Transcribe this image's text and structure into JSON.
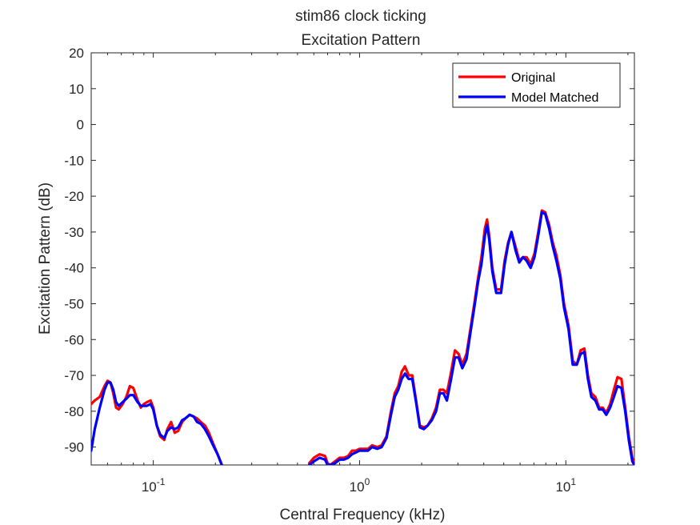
{
  "chart_data": {
    "type": "line",
    "title": "stim86 clock ticking",
    "subtitle": "Excitation Pattern",
    "xlabel": "Central Frequency (kHz)",
    "ylabel": "Excitation Pattern (dB)",
    "xscale": "log",
    "xlim": [
      0.05,
      21.5
    ],
    "ylim": [
      -95,
      20
    ],
    "grid": false,
    "legend_position": "top-right",
    "yticks": [
      20,
      10,
      0,
      -10,
      -20,
      -30,
      -40,
      -50,
      -60,
      -70,
      -80,
      -90
    ],
    "xticks": [
      {
        "value": 0.1,
        "label_base": "10",
        "label_exp": "-1"
      },
      {
        "value": 1,
        "label_base": "10",
        "label_exp": "0"
      },
      {
        "value": 10,
        "label_base": "10",
        "label_exp": "1"
      }
    ],
    "series": [
      {
        "name": "Original",
        "color": "#ff0000",
        "segments": [
          [
            [
              0.05,
              -78
            ],
            [
              0.052,
              -77
            ],
            [
              0.055,
              -76
            ],
            [
              0.058,
              -73
            ],
            [
              0.06,
              -71.5
            ],
            [
              0.062,
              -72
            ],
            [
              0.064,
              -75
            ],
            [
              0.066,
              -79
            ],
            [
              0.068,
              -79.5
            ],
            [
              0.071,
              -78
            ],
            [
              0.074,
              -76
            ],
            [
              0.077,
              -73
            ],
            [
              0.08,
              -73.5
            ],
            [
              0.084,
              -77
            ],
            [
              0.087,
              -79
            ],
            [
              0.09,
              -78
            ],
            [
              0.093,
              -77.5
            ],
            [
              0.097,
              -77
            ],
            [
              0.1,
              -79
            ],
            [
              0.104,
              -84
            ],
            [
              0.108,
              -87
            ],
            [
              0.113,
              -88
            ],
            [
              0.117,
              -85
            ],
            [
              0.122,
              -83
            ],
            [
              0.127,
              -86
            ],
            [
              0.132,
              -85.5
            ],
            [
              0.138,
              -83
            ],
            [
              0.143,
              -82
            ],
            [
              0.15,
              -81
            ],
            [
              0.157,
              -81.5
            ],
            [
              0.163,
              -82
            ],
            [
              0.17,
              -83
            ],
            [
              0.178,
              -84
            ],
            [
              0.186,
              -86
            ],
            [
              0.195,
              -89
            ],
            [
              0.205,
              -92
            ],
            [
              0.215,
              -95
            ]
          ],
          [
            [
              0.57,
              -94.5
            ],
            [
              0.6,
              -93
            ],
            [
              0.64,
              -92
            ],
            [
              0.68,
              -92.5
            ],
            [
              0.7,
              -94.5
            ],
            [
              0.72,
              -95
            ],
            [
              0.76,
              -94
            ],
            [
              0.8,
              -93
            ],
            [
              0.84,
              -93
            ],
            [
              0.88,
              -92.5
            ],
            [
              0.92,
              -91
            ],
            [
              0.96,
              -91
            ],
            [
              1.0,
              -90.5
            ],
            [
              1.04,
              -90.5
            ],
            [
              1.1,
              -90.5
            ],
            [
              1.15,
              -89.5
            ],
            [
              1.22,
              -90
            ],
            [
              1.28,
              -89.5
            ],
            [
              1.35,
              -87
            ],
            [
              1.42,
              -80
            ],
            [
              1.48,
              -75
            ],
            [
              1.54,
              -73
            ],
            [
              1.6,
              -69
            ],
            [
              1.66,
              -67.5
            ],
            [
              1.73,
              -70
            ],
            [
              1.8,
              -70
            ],
            [
              1.88,
              -77
            ],
            [
              1.96,
              -84
            ],
            [
              2.05,
              -84.5
            ],
            [
              2.14,
              -84
            ],
            [
              2.24,
              -82
            ],
            [
              2.35,
              -79
            ],
            [
              2.45,
              -74
            ],
            [
              2.55,
              -74
            ],
            [
              2.65,
              -75
            ],
            [
              2.78,
              -69
            ],
            [
              2.9,
              -63
            ],
            [
              3.02,
              -64
            ],
            [
              3.15,
              -67
            ],
            [
              3.3,
              -64
            ],
            [
              3.45,
              -57
            ],
            [
              3.6,
              -50
            ],
            [
              3.75,
              -43
            ],
            [
              3.9,
              -37
            ],
            [
              4.05,
              -29
            ],
            [
              4.15,
              -26.5
            ],
            [
              4.25,
              -31
            ],
            [
              4.4,
              -40
            ],
            [
              4.6,
              -46
            ],
            [
              4.85,
              -46
            ],
            [
              5.05,
              -38
            ],
            [
              5.25,
              -33
            ],
            [
              5.45,
              -30
            ],
            [
              5.7,
              -34
            ],
            [
              5.95,
              -38
            ],
            [
              6.2,
              -37
            ],
            [
              6.45,
              -37
            ],
            [
              6.75,
              -39
            ],
            [
              7.05,
              -36
            ],
            [
              7.35,
              -30
            ],
            [
              7.65,
              -24
            ],
            [
              7.95,
              -24.5
            ],
            [
              8.3,
              -28
            ],
            [
              8.65,
              -33
            ],
            [
              9.0,
              -36.5
            ],
            [
              9.4,
              -42
            ],
            [
              9.8,
              -50
            ],
            [
              10.3,
              -56
            ],
            [
              10.8,
              -66
            ],
            [
              11.3,
              -67
            ],
            [
              11.8,
              -63
            ],
            [
              12.3,
              -62.5
            ],
            [
              12.8,
              -70
            ],
            [
              13.3,
              -75
            ],
            [
              13.9,
              -76
            ],
            [
              14.5,
              -79
            ],
            [
              15.1,
              -79
            ],
            [
              15.7,
              -80.5
            ],
            [
              16.4,
              -78
            ],
            [
              17.1,
              -74
            ],
            [
              17.8,
              -70.5
            ],
            [
              18.6,
              -71
            ],
            [
              19.4,
              -79
            ],
            [
              20.2,
              -87
            ],
            [
              21.0,
              -93
            ],
            [
              21.5,
              -95
            ]
          ]
        ]
      },
      {
        "name": "Model Matched",
        "color": "#0000ff",
        "segments": [
          [
            [
              0.05,
              -91
            ],
            [
              0.052,
              -85
            ],
            [
              0.055,
              -79
            ],
            [
              0.058,
              -74
            ],
            [
              0.06,
              -72
            ],
            [
              0.062,
              -72
            ],
            [
              0.064,
              -74
            ],
            [
              0.066,
              -77.5
            ],
            [
              0.068,
              -78.5
            ],
            [
              0.071,
              -77.5
            ],
            [
              0.074,
              -76.5
            ],
            [
              0.077,
              -75.5
            ],
            [
              0.08,
              -75.5
            ],
            [
              0.084,
              -77.5
            ],
            [
              0.087,
              -78.5
            ],
            [
              0.09,
              -78.5
            ],
            [
              0.093,
              -78.5
            ],
            [
              0.097,
              -78
            ],
            [
              0.1,
              -79.5
            ],
            [
              0.104,
              -84
            ],
            [
              0.108,
              -86.5
            ],
            [
              0.113,
              -87.5
            ],
            [
              0.117,
              -85.5
            ],
            [
              0.122,
              -84.5
            ],
            [
              0.127,
              -85
            ],
            [
              0.132,
              -84.5
            ],
            [
              0.138,
              -82.5
            ],
            [
              0.143,
              -82
            ],
            [
              0.15,
              -81
            ],
            [
              0.157,
              -81.5
            ],
            [
              0.163,
              -83
            ],
            [
              0.17,
              -83.5
            ],
            [
              0.178,
              -85
            ],
            [
              0.186,
              -87
            ],
            [
              0.195,
              -89.5
            ],
            [
              0.205,
              -92
            ],
            [
              0.215,
              -95
            ]
          ],
          [
            [
              0.57,
              -95
            ],
            [
              0.6,
              -94
            ],
            [
              0.64,
              -93
            ],
            [
              0.68,
              -93.5
            ],
            [
              0.7,
              -95
            ],
            [
              0.72,
              -95
            ],
            [
              0.76,
              -94.5
            ],
            [
              0.8,
              -93.5
            ],
            [
              0.84,
              -93.5
            ],
            [
              0.88,
              -93
            ],
            [
              0.92,
              -92
            ],
            [
              0.96,
              -91.5
            ],
            [
              1.0,
              -91
            ],
            [
              1.04,
              -91
            ],
            [
              1.1,
              -91
            ],
            [
              1.15,
              -90
            ],
            [
              1.22,
              -90.5
            ],
            [
              1.28,
              -90
            ],
            [
              1.35,
              -87.5
            ],
            [
              1.42,
              -81
            ],
            [
              1.48,
              -76
            ],
            [
              1.54,
              -74
            ],
            [
              1.6,
              -71
            ],
            [
              1.66,
              -69.5
            ],
            [
              1.73,
              -71
            ],
            [
              1.8,
              -71
            ],
            [
              1.88,
              -77.5
            ],
            [
              1.96,
              -84.5
            ],
            [
              2.05,
              -85
            ],
            [
              2.14,
              -84
            ],
            [
              2.24,
              -82.5
            ],
            [
              2.35,
              -80
            ],
            [
              2.45,
              -75
            ],
            [
              2.55,
              -75
            ],
            [
              2.65,
              -77
            ],
            [
              2.78,
              -71
            ],
            [
              2.9,
              -65
            ],
            [
              3.02,
              -65
            ],
            [
              3.15,
              -68
            ],
            [
              3.3,
              -65.5
            ],
            [
              3.45,
              -58
            ],
            [
              3.6,
              -51
            ],
            [
              3.75,
              -44
            ],
            [
              3.9,
              -39
            ],
            [
              4.05,
              -31
            ],
            [
              4.15,
              -28
            ],
            [
              4.25,
              -32
            ],
            [
              4.4,
              -41
            ],
            [
              4.6,
              -47
            ],
            [
              4.85,
              -47
            ],
            [
              5.05,
              -39
            ],
            [
              5.25,
              -33.5
            ],
            [
              5.45,
              -30
            ],
            [
              5.7,
              -35
            ],
            [
              5.95,
              -38.5
            ],
            [
              6.2,
              -37
            ],
            [
              6.45,
              -38
            ],
            [
              6.75,
              -40
            ],
            [
              7.05,
              -37
            ],
            [
              7.35,
              -31
            ],
            [
              7.65,
              -24.5
            ],
            [
              7.95,
              -25
            ],
            [
              8.3,
              -29
            ],
            [
              8.65,
              -34
            ],
            [
              9.0,
              -38
            ],
            [
              9.4,
              -43
            ],
            [
              9.8,
              -51
            ],
            [
              10.3,
              -57
            ],
            [
              10.8,
              -67
            ],
            [
              11.3,
              -67
            ],
            [
              11.8,
              -64
            ],
            [
              12.3,
              -63.5
            ],
            [
              12.8,
              -71
            ],
            [
              13.3,
              -76
            ],
            [
              13.9,
              -77
            ],
            [
              14.5,
              -79.5
            ],
            [
              15.1,
              -79.5
            ],
            [
              15.7,
              -81
            ],
            [
              16.4,
              -79
            ],
            [
              17.1,
              -76
            ],
            [
              17.8,
              -73
            ],
            [
              18.6,
              -73.5
            ],
            [
              19.4,
              -80
            ],
            [
              20.2,
              -88
            ],
            [
              21.0,
              -94
            ],
            [
              21.5,
              -95
            ]
          ]
        ]
      }
    ]
  }
}
